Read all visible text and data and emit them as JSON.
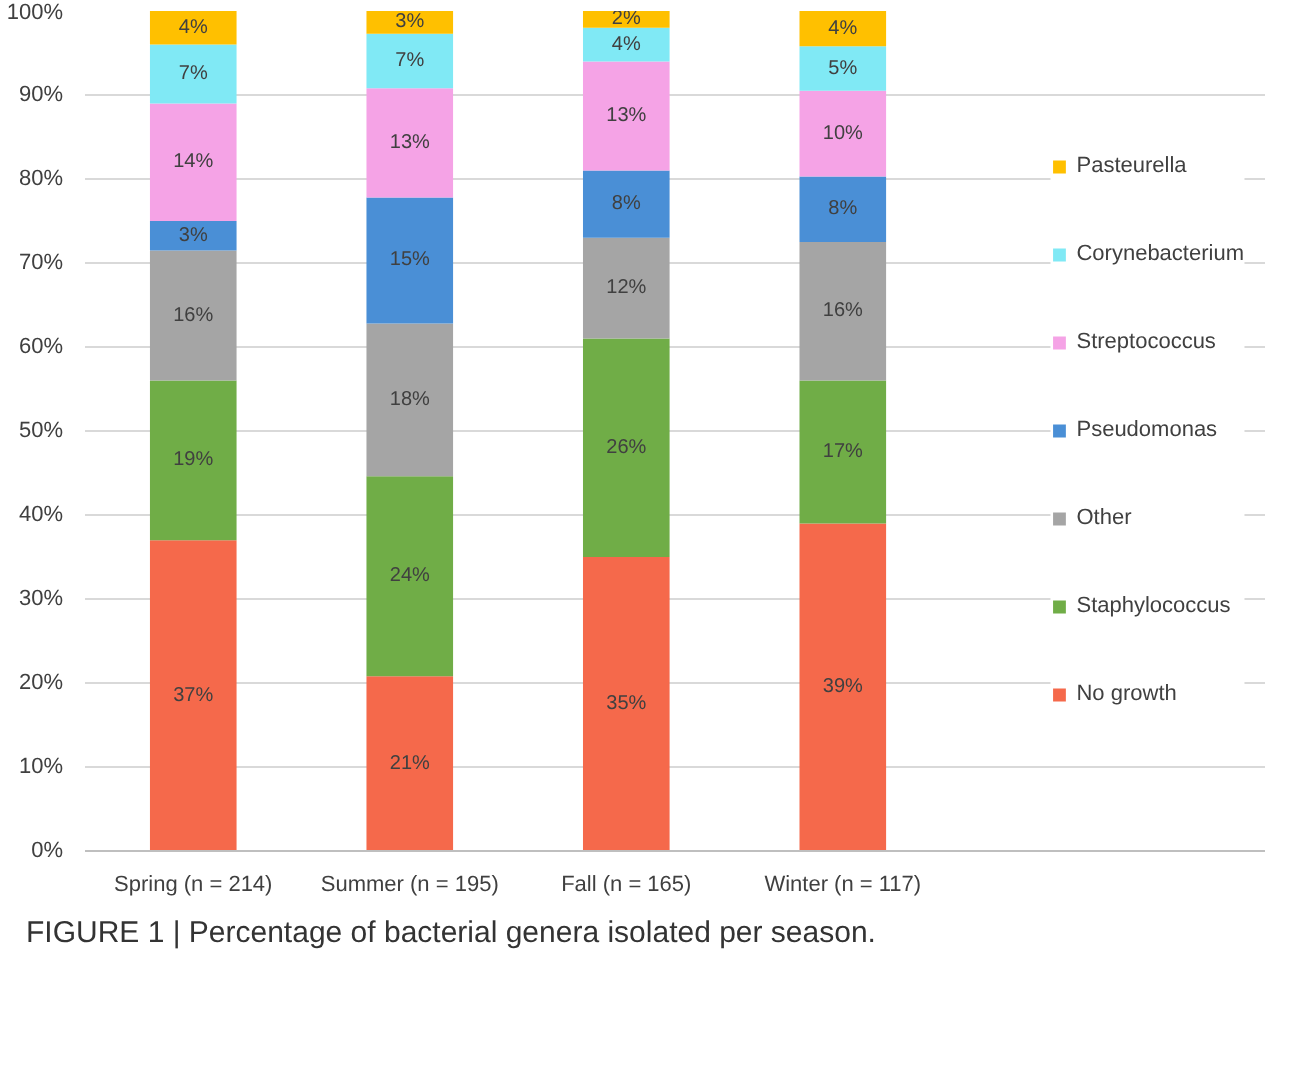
{
  "chart_data": {
    "type": "bar",
    "stacked": true,
    "categories": [
      "Spring (n = 214)",
      "Summer (n = 195)",
      "Fall (n = 165)",
      "Winter (n = 117)"
    ],
    "series": [
      {
        "name": "No growth",
        "color": "#f5694b",
        "values": [
          37,
          20.8,
          35,
          39
        ],
        "value_labels": [
          "37%",
          "21%",
          "35%",
          "39%"
        ]
      },
      {
        "name": "Staphylococcus",
        "color": "#70ad47",
        "values": [
          19,
          23.8,
          26,
          17
        ],
        "value_labels": [
          "19%",
          "24%",
          "26%",
          "17%"
        ]
      },
      {
        "name": "Other",
        "color": "#a5a5a5",
        "values": [
          15.5,
          18.2,
          12,
          16.5
        ],
        "value_labels": [
          "16%",
          "18%",
          "12%",
          "16%"
        ]
      },
      {
        "name": "Pseudomonas",
        "color": "#4a8fd6",
        "values": [
          3.5,
          15,
          8,
          7.8
        ],
        "value_labels": [
          "3%",
          "15%",
          "8%",
          "8%"
        ]
      },
      {
        "name": "Streptococcus",
        "color": "#f5a3e6",
        "values": [
          14,
          13,
          13,
          10.2
        ],
        "value_labels": [
          "14%",
          "13%",
          "13%",
          "10%"
        ]
      },
      {
        "name": "Corynebacterium",
        "color": "#80e9f5",
        "values": [
          7,
          6.5,
          4,
          5.3
        ],
        "value_labels": [
          "7%",
          "7%",
          "4%",
          "5%"
        ]
      },
      {
        "name": "Pasteurella",
        "color": "#ffc000",
        "values": [
          4,
          2.7,
          2,
          4.2
        ],
        "value_labels": [
          "4%",
          "3%",
          "2%",
          "4%"
        ]
      }
    ],
    "ylim": [
      0,
      100
    ],
    "yticks": [
      {
        "value": 0,
        "label": "0%"
      },
      {
        "value": 10,
        "label": "10%"
      },
      {
        "value": 20,
        "label": "20%"
      },
      {
        "value": 30,
        "label": "30%"
      },
      {
        "value": 40,
        "label": "40%"
      },
      {
        "value": 50,
        "label": "50%"
      },
      {
        "value": 60,
        "label": "60%"
      },
      {
        "value": 70,
        "label": "70%"
      },
      {
        "value": 80,
        "label": "80%"
      },
      {
        "value": 90,
        "label": "90%"
      },
      {
        "value": 100,
        "label": "100%"
      }
    ],
    "grid": "y",
    "legend": "right",
    "annotations": [
      "FIGURE 1 | Percentage of bacterial genera isolated per season."
    ]
  }
}
